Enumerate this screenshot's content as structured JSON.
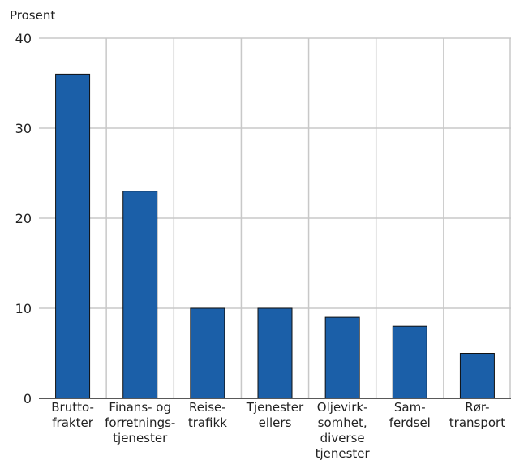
{
  "chart_data": {
    "type": "bar",
    "ylabel": "Prosent",
    "ylim": [
      0,
      40
    ],
    "yticks": [
      "0",
      "10",
      "20",
      "30",
      "40"
    ],
    "grid": true,
    "categories": [
      [
        "Brutto-",
        "frakter"
      ],
      [
        "Finans- og",
        "forretnings-",
        "tjenester"
      ],
      [
        "Reise-",
        "trafikk"
      ],
      [
        "Tjenester",
        "ellers"
      ],
      [
        "Oljevirk-",
        "somhet,",
        "diverse",
        "tjenester"
      ],
      [
        "Sam-",
        "ferdsel"
      ],
      [
        "Rør-",
        "transport"
      ]
    ],
    "values": [
      36,
      23,
      10,
      10,
      9,
      8,
      5
    ],
    "colors": {
      "bar": "#1b5fa8",
      "grid": "#c8c8c8",
      "axis": "#222222"
    }
  }
}
